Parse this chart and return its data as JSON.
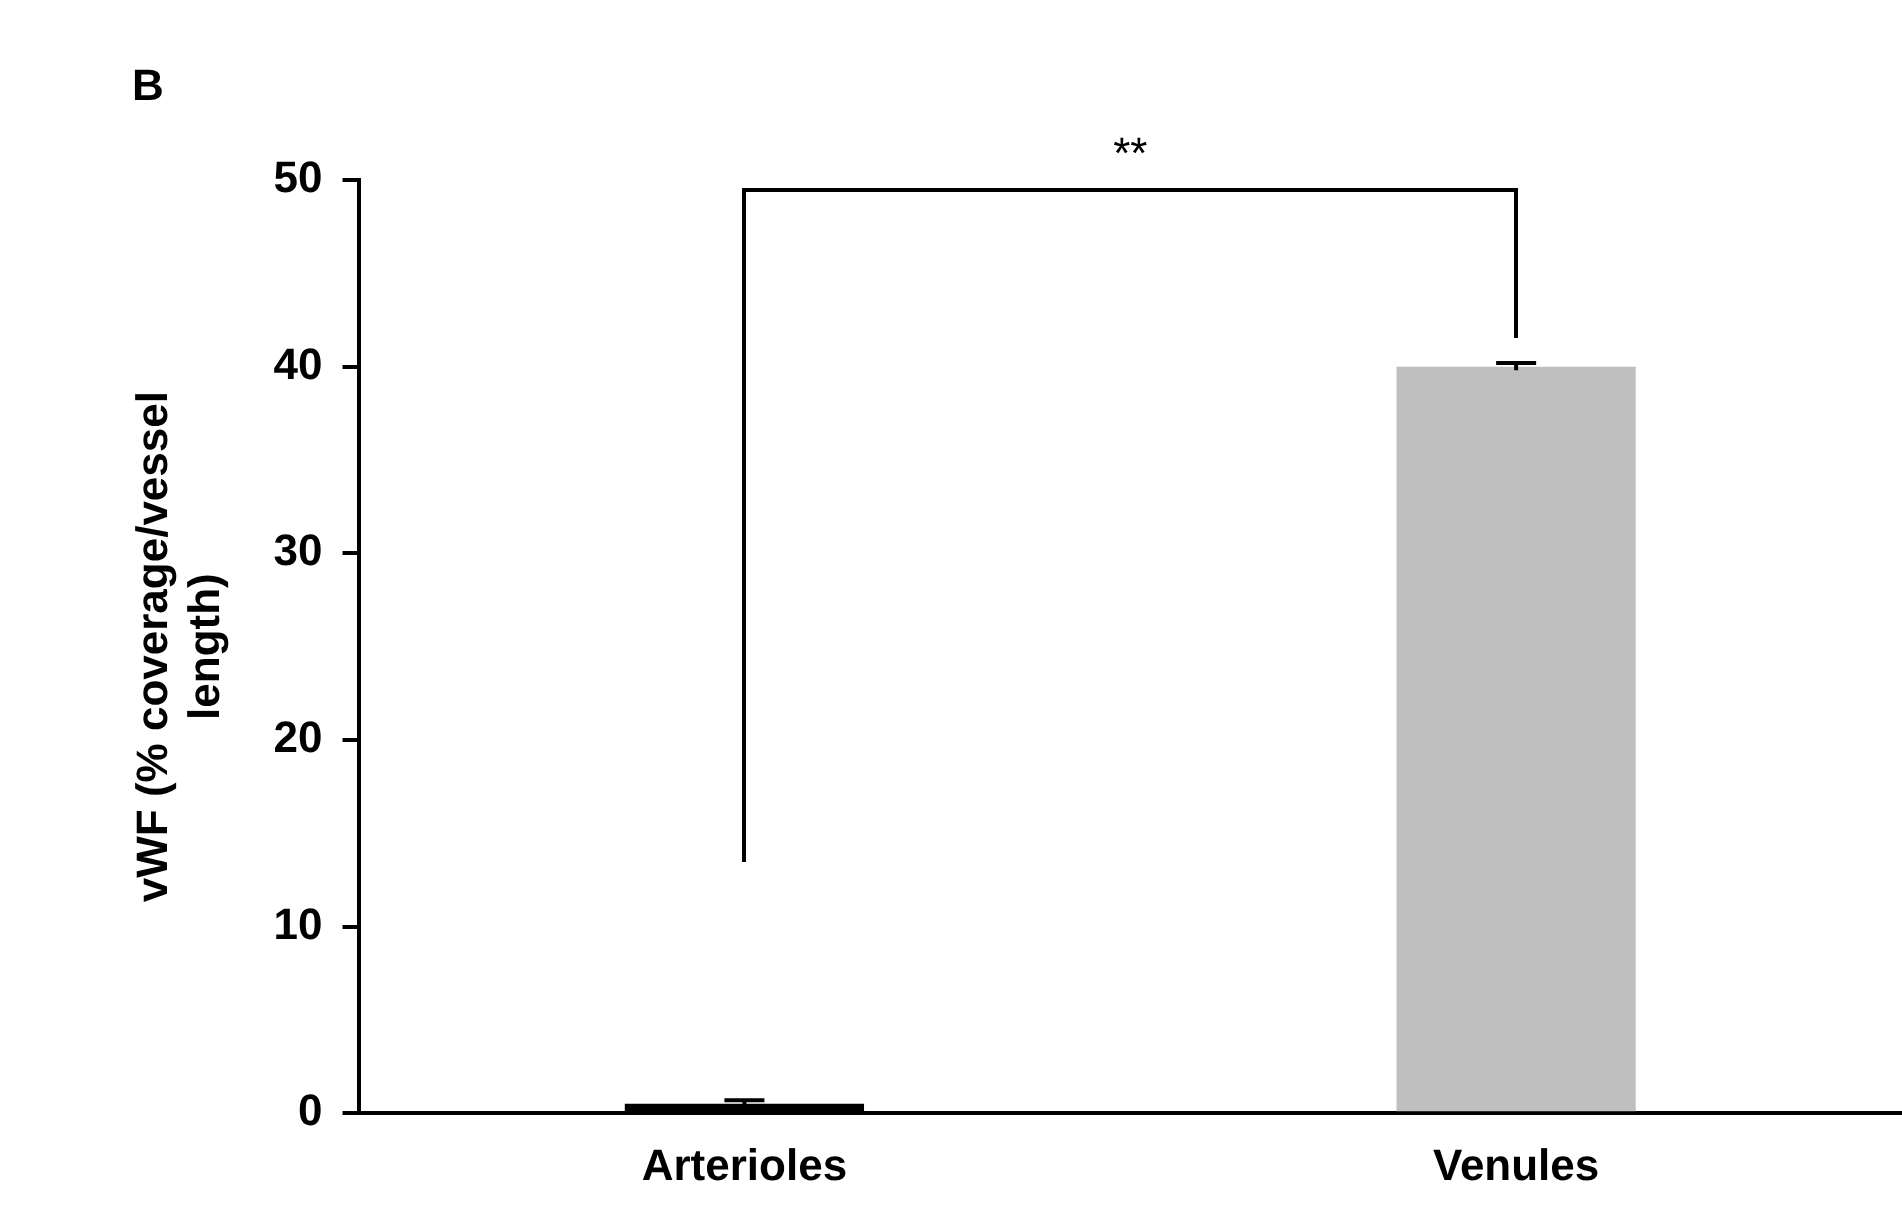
{
  "chart_data": {
    "type": "bar",
    "ylabel": "vWF (% coverage/vessel length)",
    "categories": [
      "Arterioles",
      "Venules"
    ],
    "values": [
      0.5,
      40
    ],
    "errors": [
      0.2,
      0.2
    ],
    "colors": [
      "#000000",
      "#bfbfbf"
    ],
    "ylim": [
      0,
      50
    ],
    "yticks": [
      0,
      10,
      20,
      30,
      40,
      50
    ],
    "grid": false,
    "legend": false,
    "annotations": [
      "B",
      "**"
    ]
  }
}
